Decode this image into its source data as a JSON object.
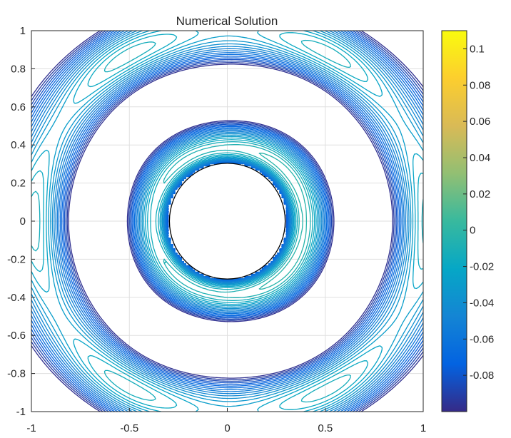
{
  "chart_data": {
    "type": "contour",
    "title": "Numerical Solution",
    "xlabel": "",
    "ylabel": "",
    "xlim": [
      -1,
      1
    ],
    "ylim": [
      -1,
      1
    ],
    "x_ticks": [
      "-1",
      "-0.5",
      "0",
      "0.5",
      "1"
    ],
    "x_tick_values": [
      -1,
      -0.5,
      0,
      0.5,
      1
    ],
    "y_ticks": [
      "1",
      "0.8",
      "0.6",
      "0.4",
      "0.2",
      "0",
      "-0.2",
      "-0.4",
      "-0.6",
      "-0.8",
      "-1"
    ],
    "y_tick_values": [
      1,
      0.8,
      0.6,
      0.4,
      0.2,
      0,
      -0.2,
      -0.4,
      -0.6,
      -0.8,
      -1
    ],
    "grid": true,
    "obstacle": {
      "shape": "circle",
      "center": [
        0,
        0
      ],
      "radius": 0.3
    },
    "contour_levels": {
      "min": -0.1,
      "max": 0.11,
      "count": 40
    },
    "colorbar": {
      "colormap": "parula",
      "range": [
        -0.1,
        0.11
      ],
      "ticks": [
        "0.1",
        "0.08",
        "0.06",
        "0.04",
        "0.02",
        "0",
        "-0.02",
        "-0.04",
        "-0.06",
        "-0.08"
      ],
      "tick_values": [
        0.1,
        0.08,
        0.06,
        0.04,
        0.02,
        0,
        -0.02,
        -0.04,
        -0.06,
        -0.08
      ],
      "stops": [
        "#352a87",
        "#0363e1",
        "#1485d4",
        "#06a7c6",
        "#38b99e",
        "#92bf73",
        "#d9ba56",
        "#fcce2e",
        "#f9fb0e"
      ]
    }
  }
}
